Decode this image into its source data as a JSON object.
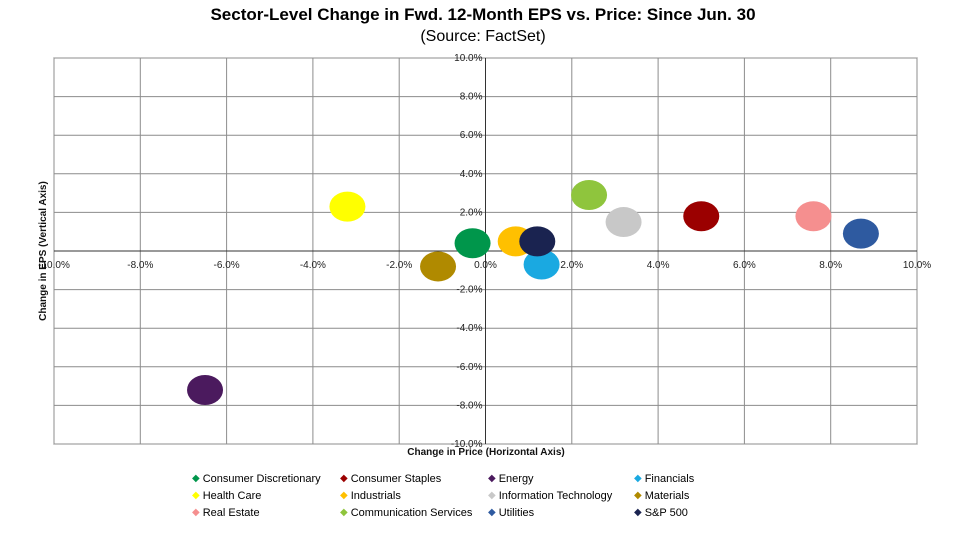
{
  "chart_data": {
    "type": "scatter",
    "title": "Sector-Level Change in Fwd. 12-Month EPS vs. Price: Since Jun. 30",
    "subtitle": "(Source: FactSet)",
    "xlabel": "Change in Price (Horizontal Axis)",
    "ylabel": "Change in EPS (Vertical Axis)",
    "xlim": [
      -10,
      10
    ],
    "ylim": [
      -10,
      10
    ],
    "x_step": 2,
    "y_step": 2,
    "x_tick_labels": [
      "-10.0%",
      "-8.0%",
      "-6.0%",
      "-4.0%",
      "-2.0%",
      "0.0%",
      "2.0%",
      "4.0%",
      "6.0%",
      "8.0%",
      "10.0%"
    ],
    "y_tick_labels": [
      "10.0%",
      "8.0%",
      "6.0%",
      "4.0%",
      "2.0%",
      "0.0%",
      "-2.0%",
      "-4.0%",
      "-6.0%",
      "-8.0%",
      "-10.0%"
    ],
    "grid": true,
    "legend_position": "bottom",
    "series": [
      {
        "name": "Consumer Discretionary",
        "x": -0.3,
        "y": 0.4,
        "color": "#00964b"
      },
      {
        "name": "Consumer Staples",
        "x": 5.0,
        "y": 1.8,
        "color": "#9b0000"
      },
      {
        "name": "Energy",
        "x": -6.5,
        "y": -7.2,
        "color": "#4b1a5e"
      },
      {
        "name": "Financials",
        "x": 1.3,
        "y": -0.7,
        "color": "#1aa9e1"
      },
      {
        "name": "Health Care",
        "x": -3.2,
        "y": 2.3,
        "color": "#ffff00"
      },
      {
        "name": "Industrials",
        "x": 0.7,
        "y": 0.5,
        "color": "#ffc000"
      },
      {
        "name": "Information Technology",
        "x": 3.2,
        "y": 1.5,
        "color": "#c8c8c8"
      },
      {
        "name": "Materials",
        "x": -1.1,
        "y": -0.8,
        "color": "#b08a00"
      },
      {
        "name": "Real Estate",
        "x": 7.6,
        "y": 1.8,
        "color": "#f58f8f"
      },
      {
        "name": "Communication Services",
        "x": 2.4,
        "y": 2.9,
        "color": "#8fc53d"
      },
      {
        "name": "Utilities",
        "x": 8.7,
        "y": 0.9,
        "color": "#2e5aa0"
      },
      {
        "name": "S&P 500",
        "x": 1.2,
        "y": 0.5,
        "color": "#1a2350"
      }
    ]
  }
}
